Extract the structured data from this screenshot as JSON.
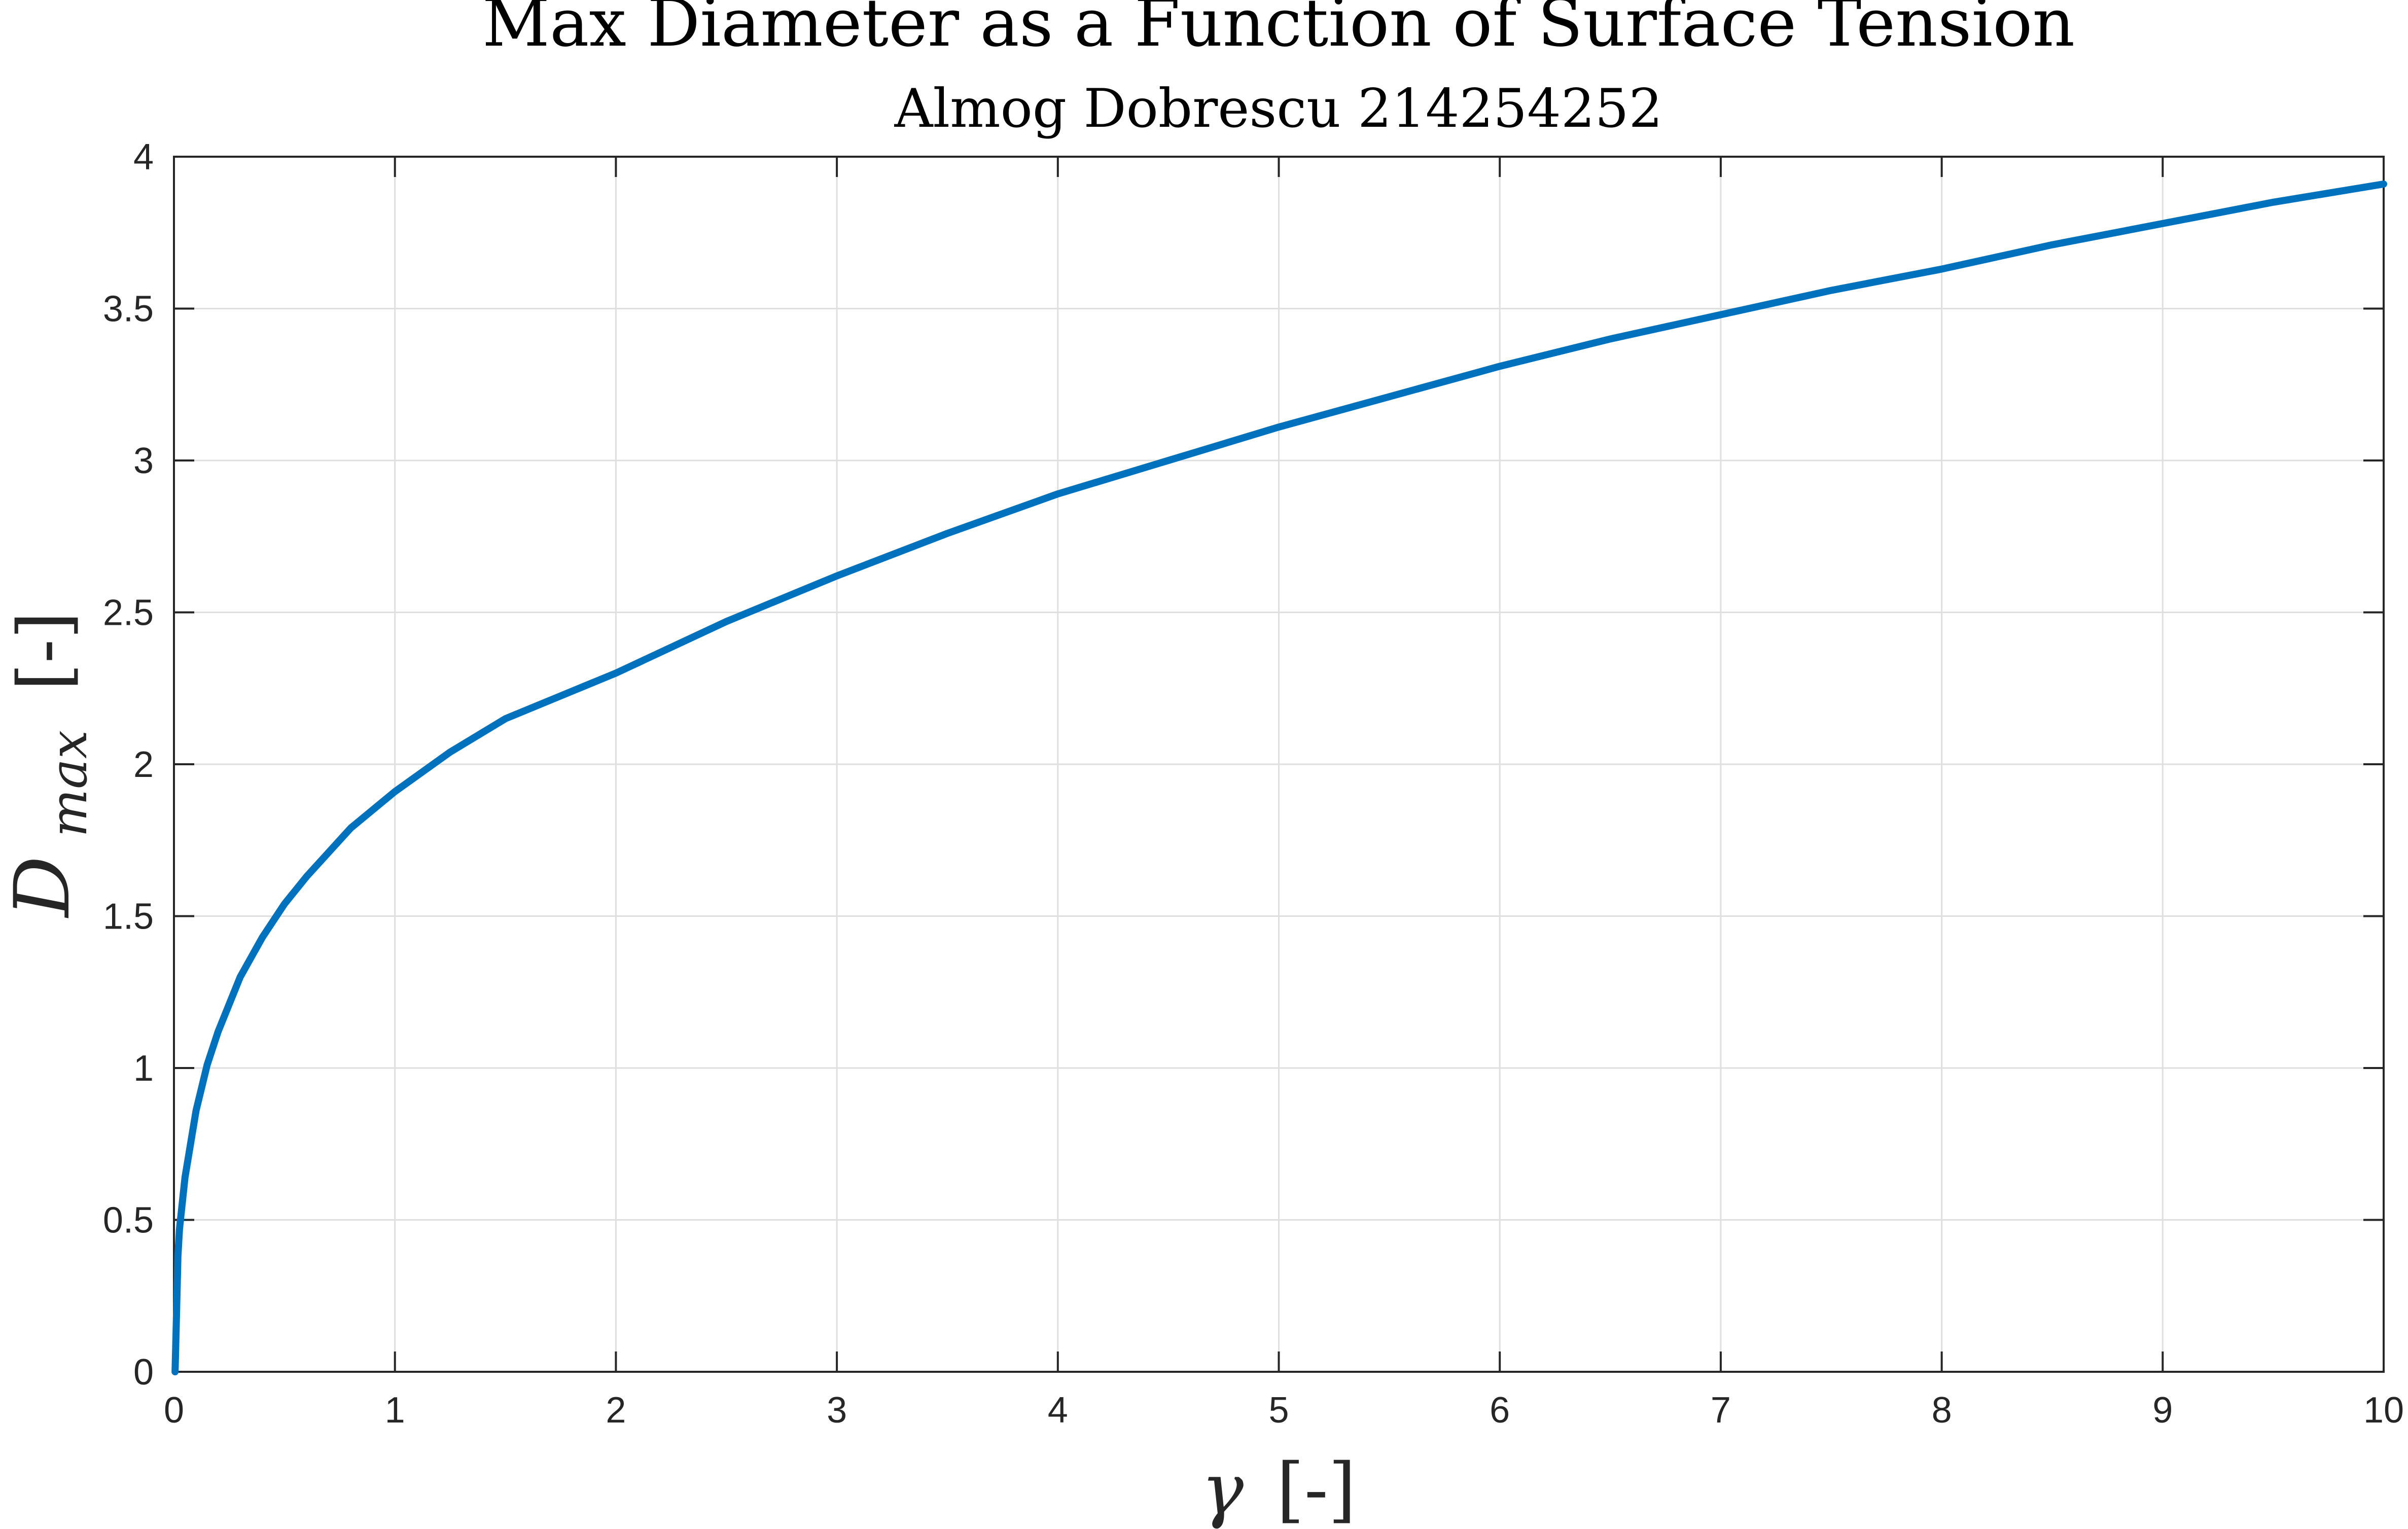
{
  "chart_data": {
    "type": "line",
    "title": "Max Diameter as a Function of Surface Tension",
    "subtitle": "Almog Dobrescu 214254252",
    "xlabel": {
      "symbol": "γ",
      "unit": "[-]"
    },
    "ylabel": {
      "symbol": "D",
      "subscript": "max",
      "unit": "[-]"
    },
    "xlim": [
      0,
      10
    ],
    "ylim": [
      0,
      4
    ],
    "xticks": [
      "0",
      "1",
      "2",
      "3",
      "4",
      "5",
      "6",
      "7",
      "8",
      "9",
      "10"
    ],
    "yticks": [
      "0",
      "0.5",
      "1",
      "1.5",
      "2",
      "2.5",
      "3",
      "3.5",
      "4"
    ],
    "grid": true,
    "series_color": "#0072BD",
    "x": [
      0.005,
      0.012,
      0.018,
      0.025,
      0.05,
      0.1,
      0.15,
      0.2,
      0.3,
      0.4,
      0.5,
      0.6,
      0.8,
      1,
      1.25,
      1.5,
      2,
      2.5,
      3,
      3.5,
      4,
      4.5,
      5,
      5.5,
      6,
      6.5,
      7,
      7.5,
      8,
      8.5,
      9,
      9.5,
      10
    ],
    "y": [
      0,
      0.2,
      0.38,
      0.47,
      0.64,
      0.86,
      1.01,
      1.12,
      1.3,
      1.43,
      1.54,
      1.63,
      1.79,
      1.91,
      2.04,
      2.15,
      2.3,
      2.47,
      2.62,
      2.76,
      2.89,
      3.0,
      3.11,
      3.21,
      3.31,
      3.4,
      3.48,
      3.56,
      3.63,
      3.71,
      3.78,
      3.85,
      3.91
    ]
  }
}
